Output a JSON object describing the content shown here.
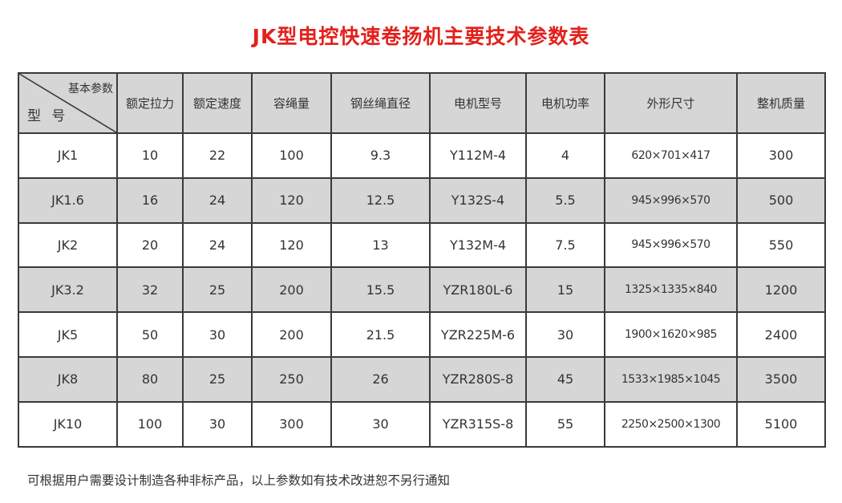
{
  "title": "JK型电控快速卷扬机主要技术参数表",
  "table": {
    "corner_top": "基本参数",
    "corner_bottom": "型 号",
    "headers": [
      "额定拉力",
      "额定速度",
      "容绳量",
      "钢丝绳直径",
      "电机型号",
      "电机功率",
      "外形尺寸",
      "整机质量"
    ],
    "rows": [
      [
        "JK1",
        "10",
        "22",
        "100",
        "9.3",
        "Y112M-4",
        "4",
        "620×701×417",
        "300"
      ],
      [
        "JK1.6",
        "16",
        "24",
        "120",
        "12.5",
        "Y132S-4",
        "5.5",
        "945×996×570",
        "500"
      ],
      [
        "JK2",
        "20",
        "24",
        "120",
        "13",
        "Y132M-4",
        "7.5",
        "945×996×570",
        "550"
      ],
      [
        "JK3.2",
        "32",
        "25",
        "200",
        "15.5",
        "YZR180L-6",
        "15",
        "1325×1335×840",
        "1200"
      ],
      [
        "JK5",
        "50",
        "30",
        "200",
        "21.5",
        "YZR225M-6",
        "30",
        "1900×1620×985",
        "2400"
      ],
      [
        "JK8",
        "80",
        "25",
        "250",
        "26",
        "YZR280S-8",
        "45",
        "1533×1985×1045",
        "3500"
      ],
      [
        "JK10",
        "100",
        "30",
        "300",
        "30",
        "YZR315S-8",
        "55",
        "2250×2500×1300",
        "5100"
      ]
    ]
  },
  "footer": "可根据用户需要设计制造各种非标产品，以上参数如有技术改进恕不另行通知",
  "colors": {
    "title": "#e3211c",
    "shaded_row": "#d6d6d6"
  }
}
